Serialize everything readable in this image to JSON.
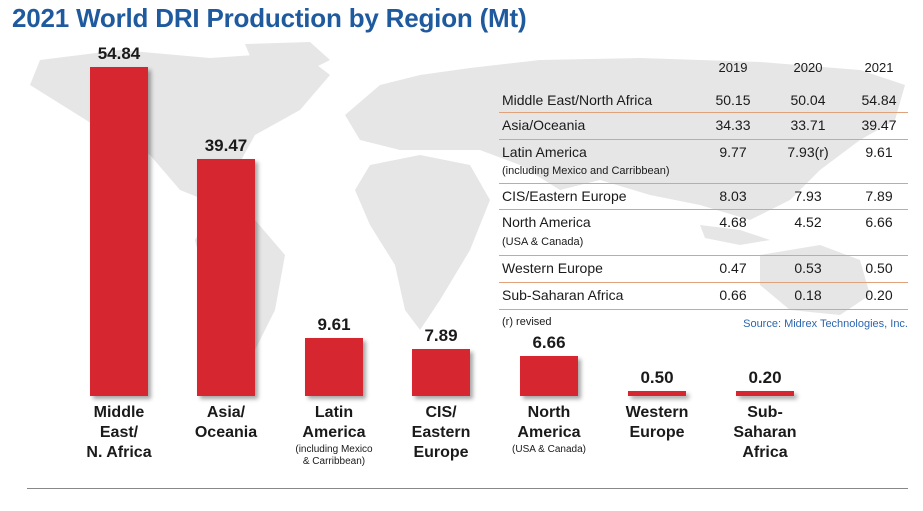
{
  "title": "2021 World DRI Production by Region (Mt)",
  "chart_data": {
    "type": "bar",
    "title": "2021 World DRI Production by Region (Mt)",
    "categories": [
      "Middle East/N. Africa",
      "Asia/Oceania",
      "Latin America",
      "CIS/Eastern Europe",
      "North America",
      "Western Europe",
      "Sub-Saharan Africa"
    ],
    "values": [
      54.84,
      39.47,
      9.61,
      7.89,
      6.66,
      0.5,
      0.2
    ],
    "value_labels": [
      "54.84",
      "39.47",
      "9.61",
      "7.89",
      "6.66",
      "0.50",
      "0.20"
    ],
    "bar_labels": [
      {
        "lines": [
          "Middle",
          "East/",
          "N. Africa"
        ],
        "sub": []
      },
      {
        "lines": [
          "Asia/",
          "Oceania"
        ],
        "sub": []
      },
      {
        "lines": [
          "Latin",
          "America"
        ],
        "sub": [
          "(including Mexico",
          "& Carribbean)"
        ]
      },
      {
        "lines": [
          "CIS/",
          "Eastern",
          "Europe"
        ],
        "sub": []
      },
      {
        "lines": [
          "North",
          "America"
        ],
        "sub": [
          "(USA & Canada)"
        ]
      },
      {
        "lines": [
          "Western",
          "Europe"
        ],
        "sub": []
      },
      {
        "lines": [
          "Sub-",
          "Saharan",
          "Africa"
        ],
        "sub": []
      }
    ],
    "ylim": [
      0,
      54.84
    ],
    "bar_color": "#d6262f",
    "grid": false,
    "xlabel": "",
    "ylabel": ""
  },
  "table": {
    "years": [
      "2019",
      "2020",
      "2021"
    ],
    "rows": [
      {
        "name": "Middle East/North Africa",
        "note": "",
        "values": [
          "50.15",
          "50.04",
          "54.84"
        ]
      },
      {
        "name": "Asia/Oceania",
        "note": "",
        "values": [
          "34.33",
          "33.71",
          "39.47"
        ]
      },
      {
        "name": "Latin America",
        "note": "(including Mexico and Carribbean)",
        "values": [
          "9.77",
          "7.93(r)",
          "9.61"
        ]
      },
      {
        "name": "CIS/Eastern Europe",
        "note": "",
        "values": [
          "8.03",
          "7.93",
          "7.89"
        ]
      },
      {
        "name": "North America",
        "note": "(USA & Canada)",
        "values": [
          "4.68",
          "4.52",
          "6.66"
        ]
      },
      {
        "name": "Western Europe",
        "note": "",
        "values": [
          "0.47",
          "0.53",
          "0.50"
        ]
      },
      {
        "name": "Sub-Saharan Africa",
        "note": "",
        "values": [
          "0.66",
          "0.18",
          "0.20"
        ]
      }
    ],
    "revised_note": "(r) revised",
    "source": "Source: Midrex Technologies, Inc."
  },
  "colors": {
    "title": "#1f5a9e",
    "bar": "#d6262f",
    "map": "#e4e4e4",
    "source": "#2b66b0",
    "row_border": "#e0a27a"
  }
}
